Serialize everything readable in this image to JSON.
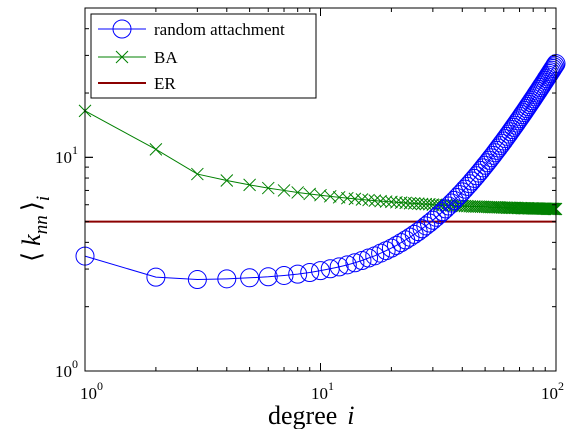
{
  "chart_data": {
    "type": "line",
    "title": "",
    "xlabel": "degree  i",
    "xlabel_parts": {
      "word": "degree",
      "var": "i"
    },
    "ylabel": "⟨ k_nn ⟩_i",
    "ylabel_parts": {
      "open": "⟨",
      "k": "k",
      "nn": "nn",
      "close": "⟩",
      "sub": "i"
    },
    "x_scale": "log",
    "y_scale": "log",
    "xlim": [
      1,
      100
    ],
    "ylim": [
      1,
      50
    ],
    "xticks": [
      {
        "value": 1,
        "base": "10",
        "exp": "0"
      },
      {
        "value": 10,
        "base": "10",
        "exp": "1"
      },
      {
        "value": 100,
        "base": "10",
        "exp": "2"
      }
    ],
    "yticks": [
      {
        "value": 1,
        "base": "10",
        "exp": "0"
      },
      {
        "value": 10,
        "base": "10",
        "exp": "1"
      }
    ],
    "grid": false,
    "legend_position": "top-left",
    "series": [
      {
        "name": "random attachment",
        "marker": "circle",
        "color": "#0000ff"
      },
      {
        "name": "BA",
        "marker": "x",
        "color": "#008000"
      },
      {
        "name": "ER",
        "marker": "none",
        "color": "#8b0000",
        "value": 5.0
      }
    ]
  }
}
